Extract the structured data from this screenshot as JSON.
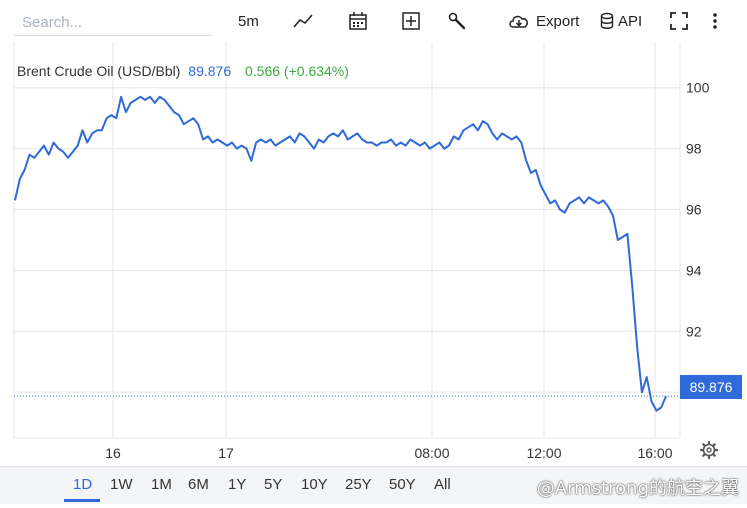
{
  "search": {
    "placeholder": "Search..."
  },
  "toolbar": {
    "interval": "5m",
    "export_label": "Export",
    "api_label": "API",
    "icons": [
      "line-chart-icon",
      "calendar-icon",
      "add-indicator-icon",
      "wrench-icon",
      "cloud-download-icon",
      "database-icon",
      "fullscreen-icon",
      "more-vertical-icon"
    ]
  },
  "legend": {
    "name": "Brent Crude Oil (USD/Bbl)",
    "price": "89.876",
    "change": "0.566 (+0.634%)"
  },
  "current_price_label": "89.876",
  "ranges": [
    "1D",
    "1W",
    "1M",
    "6M",
    "1Y",
    "5Y",
    "10Y",
    "25Y",
    "50Y",
    "All"
  ],
  "active_range": "1D",
  "watermark": "@Armstrong的航空之翼",
  "colors": {
    "line": "#2f6ad8",
    "grid": "#e6e6e6",
    "up": "#3caa3c"
  },
  "chart_data": {
    "type": "line",
    "title": "",
    "xlabel": "",
    "ylabel": "",
    "x_tick_labels": [
      "16",
      "17",
      "08:00",
      "12:00",
      "16:00"
    ],
    "y_ticks": [
      92,
      94,
      96,
      98,
      100
    ],
    "ylim": [
      88.5,
      101.5
    ],
    "grid": true,
    "current_value": 89.876,
    "series": [
      {
        "name": "Brent Crude Oil (USD/Bbl)",
        "values": [
          96.3,
          97.0,
          97.3,
          97.8,
          97.7,
          97.9,
          98.1,
          97.8,
          98.2,
          98.0,
          97.9,
          97.7,
          97.9,
          98.1,
          98.6,
          98.2,
          98.5,
          98.6,
          98.6,
          99.0,
          99.1,
          99.0,
          99.7,
          99.2,
          99.5,
          99.6,
          99.7,
          99.6,
          99.7,
          99.5,
          99.7,
          99.6,
          99.4,
          99.2,
          99.1,
          98.8,
          98.9,
          99.0,
          98.8,
          98.3,
          98.4,
          98.2,
          98.3,
          98.2,
          98.1,
          98.2,
          98.0,
          98.1,
          98.0,
          97.6,
          98.2,
          98.3,
          98.2,
          98.3,
          98.1,
          98.2,
          98.3,
          98.4,
          98.2,
          98.5,
          98.4,
          98.2,
          98.0,
          98.3,
          98.2,
          98.4,
          98.5,
          98.4,
          98.6,
          98.3,
          98.4,
          98.5,
          98.3,
          98.2,
          98.2,
          98.1,
          98.2,
          98.2,
          98.3,
          98.1,
          98.2,
          98.1,
          98.3,
          98.2,
          98.1,
          98.2,
          98.0,
          98.1,
          98.2,
          98.0,
          98.1,
          98.4,
          98.3,
          98.6,
          98.7,
          98.8,
          98.6,
          98.9,
          98.8,
          98.5,
          98.3,
          98.5,
          98.4,
          98.3,
          98.4,
          98.2,
          97.6,
          97.2,
          97.3,
          96.8,
          96.5,
          96.2,
          96.3,
          96.0,
          95.9,
          96.2,
          96.3,
          96.4,
          96.2,
          96.4,
          96.3,
          96.2,
          96.3,
          96.1,
          95.8,
          95.0,
          95.1,
          95.2,
          93.5,
          91.5,
          90.0,
          90.5,
          89.7,
          89.4,
          89.5,
          89.876
        ]
      }
    ]
  }
}
